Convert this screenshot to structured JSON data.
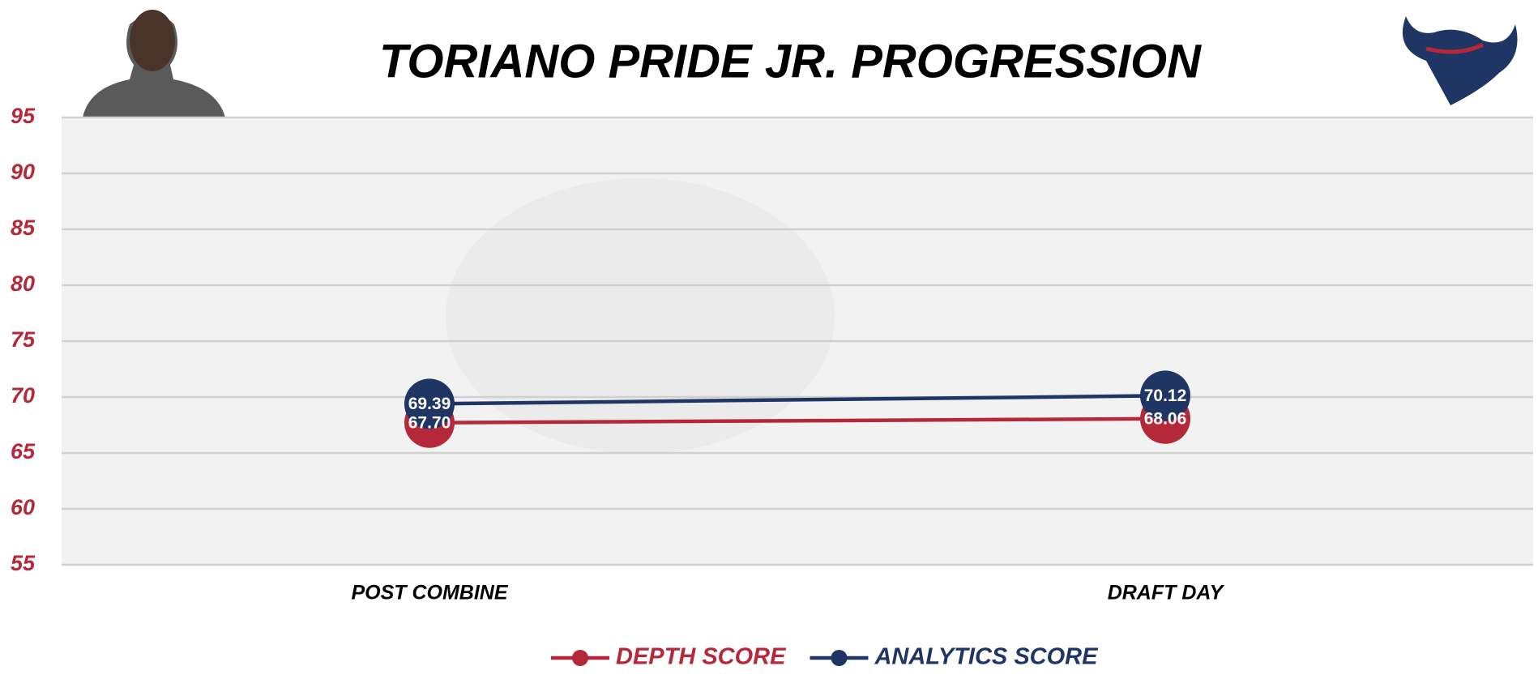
{
  "chart_data": {
    "type": "line",
    "title": "TORIANO PRIDE JR. PROGRESSION",
    "categories": [
      "POST COMBINE",
      "DRAFT DAY"
    ],
    "series": [
      {
        "name": "DEPTH SCORE",
        "color": "#b5283a",
        "values": [
          67.7,
          68.06
        ],
        "value_labels": [
          "67.70",
          "68.06"
        ]
      },
      {
        "name": "ANALYTICS SCORE",
        "color": "#1f3564",
        "values": [
          69.39,
          70.12
        ],
        "value_labels": [
          "69.39",
          "70.12"
        ]
      }
    ],
    "ylim": [
      55,
      95
    ],
    "yticks": [
      55,
      60,
      65,
      70,
      75,
      80,
      85,
      90,
      95
    ],
    "grid": true,
    "legend": "bottom"
  }
}
